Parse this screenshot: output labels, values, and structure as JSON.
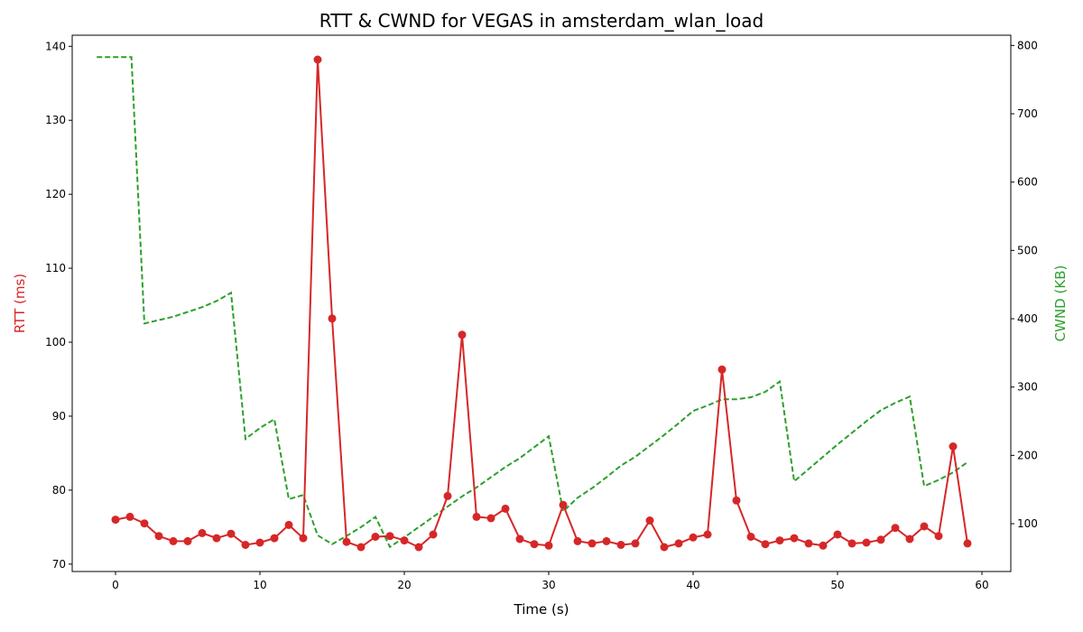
{
  "chart_data": {
    "type": "line",
    "title": "RTT & CWND for VEGAS in amsterdam_wlan_load",
    "xlabel": "Time (s)",
    "ylabel_left": "RTT (ms)",
    "ylabel_right": "CWND (KB)",
    "xlim": [
      -3,
      62
    ],
    "ylim_left": [
      69,
      141.5
    ],
    "ylim_right": [
      30,
      815
    ],
    "x_ticks": [
      0,
      10,
      20,
      30,
      40,
      50,
      60
    ],
    "y_ticks_left": [
      70,
      80,
      90,
      100,
      110,
      120,
      130,
      140
    ],
    "y_ticks_right": [
      100,
      200,
      300,
      400,
      500,
      600,
      700,
      800
    ],
    "grid": false,
    "colors": {
      "rtt": "#d62728",
      "cwnd": "#2ca02c"
    },
    "series": [
      {
        "axis": "left",
        "style": "solid-with-markers",
        "x": [
          0,
          1,
          2,
          3,
          4,
          5,
          6,
          7,
          8,
          9,
          10,
          11,
          12,
          13,
          14,
          15,
          16,
          17,
          18,
          19,
          20,
          21,
          22,
          23,
          24,
          25,
          26,
          27,
          28,
          29,
          30,
          31,
          32,
          33,
          34,
          35,
          36,
          37,
          38,
          39,
          40,
          41,
          42,
          43,
          44,
          45,
          46,
          47,
          48,
          49,
          50,
          51,
          52,
          53,
          54,
          55,
          56,
          57,
          58,
          59
        ],
        "values": [
          76.0,
          76.4,
          75.5,
          73.8,
          73.1,
          73.1,
          74.2,
          73.5,
          74.1,
          72.6,
          72.9,
          73.5,
          75.3,
          73.5,
          138.2,
          103.2,
          73.0,
          72.3,
          73.7,
          73.8,
          73.2,
          72.3,
          74.0,
          79.2,
          101.0,
          76.4,
          76.2,
          77.5,
          73.4,
          72.7,
          72.5,
          78.0,
          73.1,
          72.8,
          73.1,
          72.6,
          72.8,
          75.9,
          72.3,
          72.8,
          73.6,
          74.0,
          96.3,
          78.6,
          73.7,
          72.7,
          73.2,
          73.5,
          72.8,
          72.5,
          74.0,
          72.8,
          72.9,
          73.3,
          74.9,
          73.4,
          75.1,
          73.8,
          85.9,
          72.8
        ]
      },
      {
        "axis": "right",
        "style": "dashed",
        "x": [
          -1.3,
          1.1,
          2.0,
          3.0,
          4.0,
          5.0,
          6.0,
          7.0,
          8.0,
          9.0,
          10.0,
          11.0,
          12.0,
          13.0,
          14.0,
          15.0,
          16.0,
          17.0,
          18.0,
          19.0,
          20.0,
          21.0,
          22.0,
          23.0,
          24.0,
          25.0,
          26.0,
          27.0,
          28.0,
          29.0,
          30.0,
          31.0,
          32.0,
          33.0,
          34.0,
          35.0,
          36.0,
          37.0,
          38.0,
          39.0,
          40.0,
          41.0,
          42.0,
          43.0,
          44.0,
          45.0,
          46.0,
          47.0,
          48.0,
          49.0,
          50.0,
          51.0,
          52.0,
          53.0,
          54.0,
          55.0,
          56.0,
          57.0,
          58.0,
          59.0
        ],
        "values": [
          783,
          783,
          393,
          398,
          403,
          410,
          417,
          426,
          438,
          224,
          240,
          253,
          136,
          142,
          83,
          70,
          82,
          95,
          110,
          66,
          80,
          95,
          110,
          125,
          140,
          153,
          168,
          183,
          196,
          212,
          228,
          118,
          138,
          152,
          168,
          185,
          198,
          214,
          230,
          247,
          265,
          273,
          282,
          282,
          285,
          293,
          308,
          162,
          180,
          198,
          216,
          233,
          250,
          266,
          277,
          286,
          155,
          164,
          175,
          190
        ]
      }
    ]
  }
}
